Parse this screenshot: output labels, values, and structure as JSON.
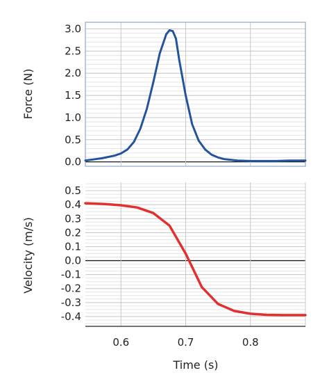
{
  "chart_data": [
    {
      "type": "line",
      "ylabel": "Force (N)",
      "xlim": [
        0.545,
        0.885
      ],
      "ylim": [
        -0.1,
        3.15
      ],
      "y_ticks": [
        "3.0",
        "2.5",
        "2.0",
        "1.5",
        "1.0",
        "0.5",
        "0.0"
      ],
      "y_tick_values": [
        3.0,
        2.5,
        2.0,
        1.5,
        1.0,
        0.5,
        0.0
      ],
      "grid": true,
      "series": [
        {
          "color": "#23529e",
          "x": [
            0.545,
            0.56,
            0.57,
            0.58,
            0.59,
            0.6,
            0.61,
            0.62,
            0.63,
            0.64,
            0.65,
            0.66,
            0.67,
            0.675,
            0.68,
            0.685,
            0.69,
            0.7,
            0.71,
            0.72,
            0.73,
            0.74,
            0.75,
            0.76,
            0.78,
            0.8,
            0.82,
            0.84,
            0.86,
            0.885
          ],
          "y": [
            0.03,
            0.06,
            0.08,
            0.11,
            0.14,
            0.19,
            0.28,
            0.45,
            0.75,
            1.2,
            1.8,
            2.45,
            2.88,
            2.97,
            2.95,
            2.78,
            2.3,
            1.5,
            0.85,
            0.48,
            0.28,
            0.16,
            0.1,
            0.06,
            0.03,
            0.02,
            0.02,
            0.02,
            0.03,
            0.03
          ]
        }
      ]
    },
    {
      "type": "line",
      "ylabel": "Velocity (m/s)",
      "xlabel": "Time (s)",
      "xlim": [
        0.545,
        0.885
      ],
      "ylim": [
        -0.47,
        0.56
      ],
      "x_ticks": [
        "0.6",
        "0.7",
        "0.8"
      ],
      "x_tick_values": [
        0.6,
        0.7,
        0.8
      ],
      "y_ticks": [
        "0.5",
        "0.4",
        "0.3",
        "0.2",
        "0.1",
        "0.0",
        "-0.1",
        "-0.2",
        "-0.3",
        "-0.4"
      ],
      "y_tick_values": [
        0.5,
        0.4,
        0.3,
        0.2,
        0.1,
        0.0,
        -0.1,
        -0.2,
        -0.3,
        -0.4
      ],
      "grid": true,
      "series": [
        {
          "color": "#e03030",
          "x": [
            0.545,
            0.575,
            0.6,
            0.625,
            0.65,
            0.675,
            0.7,
            0.725,
            0.75,
            0.775,
            0.8,
            0.825,
            0.85,
            0.885
          ],
          "y": [
            0.41,
            0.405,
            0.396,
            0.38,
            0.34,
            0.25,
            0.05,
            -0.19,
            -0.31,
            -0.36,
            -0.38,
            -0.388,
            -0.39,
            -0.39
          ]
        }
      ]
    }
  ]
}
